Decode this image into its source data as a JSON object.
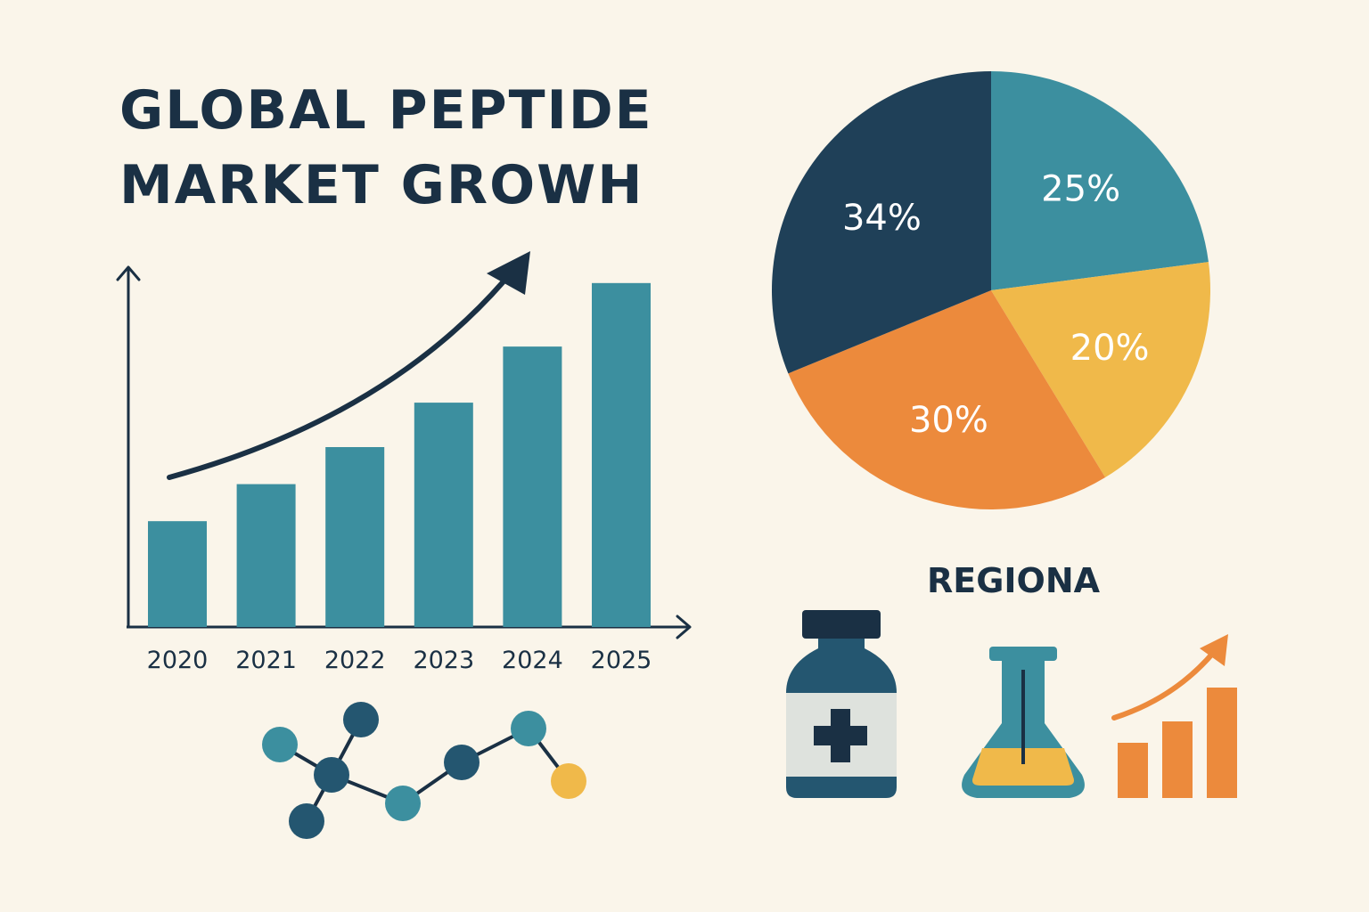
{
  "header": {
    "title_line1": "GLOBAL PEPTIDE",
    "title_line2": "MARKET GROWH"
  },
  "region_label": "REGIONA",
  "chart_data": [
    {
      "type": "bar",
      "categories": [
        "2020",
        "2021",
        "2022",
        "2023",
        "2024",
        "2025"
      ],
      "values": [
        1.0,
        1.35,
        1.7,
        2.12,
        2.65,
        3.25
      ],
      "ylim": [
        0,
        3.4
      ],
      "color": "#3C8F9F",
      "trend_arrow": true,
      "grid": false
    },
    {
      "type": "pie",
      "labels": [
        "25%",
        "20%",
        "30%",
        "34%"
      ],
      "values": [
        25,
        20,
        30,
        34
      ],
      "colors": [
        "#3C8F9F",
        "#F0B94A",
        "#EC8A3C",
        "#1F4058"
      ]
    }
  ],
  "icons": {
    "molecule": "molecule-icon",
    "bottle": "medicine-bottle-icon",
    "flask": "flask-icon",
    "growth": "growth-chart-icon"
  },
  "colors": {
    "background": "#FAF5EA",
    "navy": "#1A3044",
    "teal": "#3C8F9F",
    "yellow": "#F0B94A",
    "orange": "#EC8A3C"
  }
}
